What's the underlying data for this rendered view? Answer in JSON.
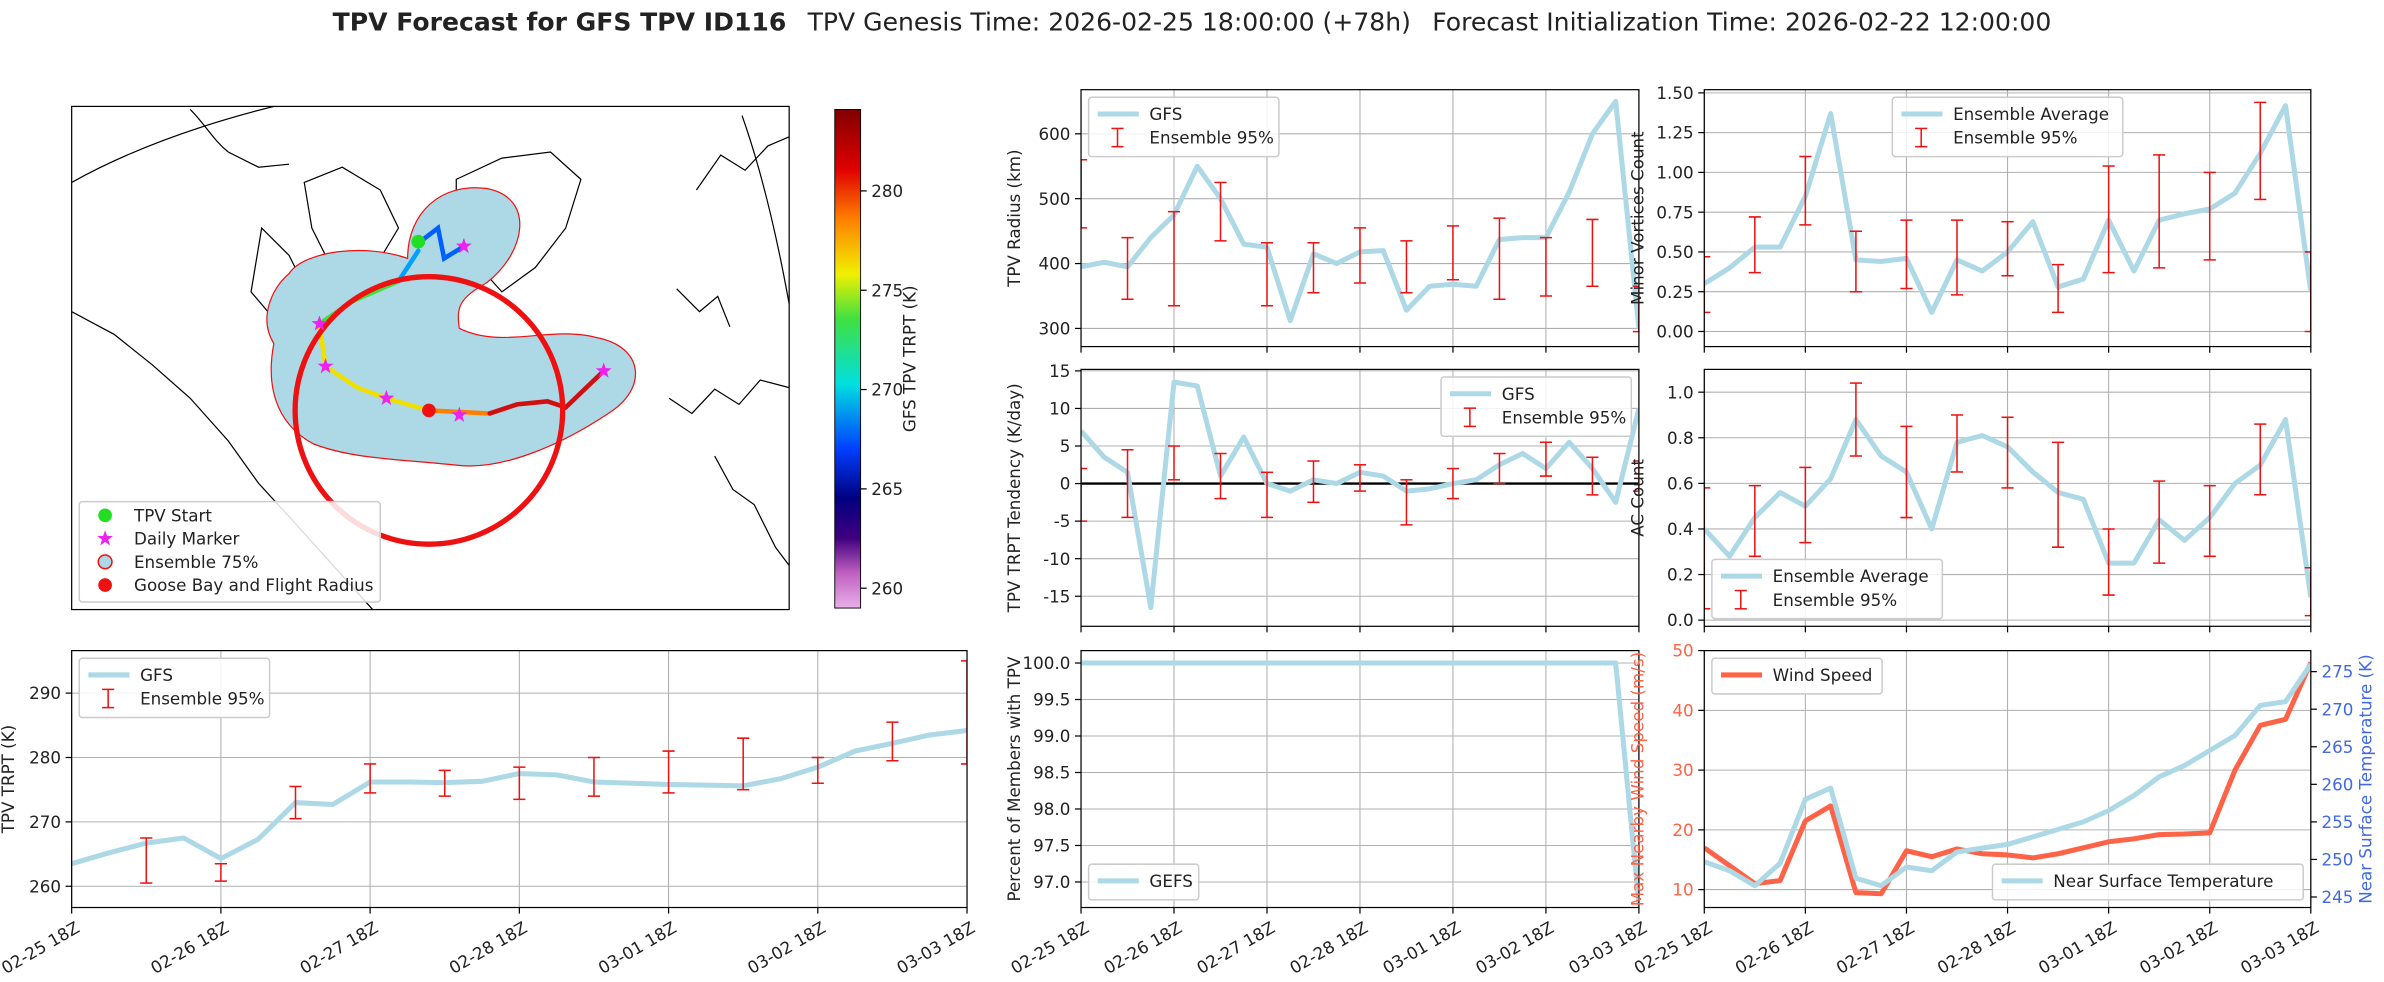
{
  "figure": {
    "title": "TPV Forecast for GFS TPV ID116",
    "genesis": "TPV Genesis Time: 2026-02-25 18:00:00 (+78h)",
    "init": "Forecast Initialization Time: 2026-02-22 12:00:00"
  },
  "chart_data": [
    {
      "type": "map",
      "legend": [
        {
          "name": "TPV Start",
          "color": "#22dd22"
        },
        {
          "name": "Daily Marker",
          "color": "#ee22ee"
        },
        {
          "name": "Ensemble 75%",
          "color": "#add8e6"
        },
        {
          "name": "Goose Bay and Flight Radius",
          "color": "#ee1111"
        }
      ],
      "colorbar": {
        "label": "GFS TPV TRPT (K)",
        "lim": [
          259,
          284.1
        ],
        "ticks": [
          260,
          265,
          270,
          275,
          280
        ]
      }
    },
    {
      "type": "line",
      "ylabel": "TPV Radius (km)",
      "grid": true,
      "legend": "upper left",
      "xticklabels": false,
      "x": [
        "02-25 18Z",
        "02-26 00Z",
        "02-26 06Z",
        "02-26 12Z",
        "02-26 18Z",
        "02-27 00Z",
        "02-27 06Z",
        "02-27 12Z",
        "02-27 18Z",
        "02-28 00Z",
        "02-28 06Z",
        "02-28 12Z",
        "02-28 18Z",
        "03-01 00Z",
        "03-01 06Z",
        "03-01 12Z",
        "03-01 18Z",
        "03-02 00Z",
        "03-02 06Z",
        "03-02 12Z",
        "03-02 18Z",
        "03-03 00Z",
        "03-03 06Z",
        "03-03 12Z",
        "03-03 18Z"
      ],
      "xlim": [
        "02-25 18Z",
        "03-03 18Z"
      ],
      "xticks": [
        "02-25 18Z",
        "02-26 18Z",
        "02-27 18Z",
        "02-28 18Z",
        "03-01 18Z",
        "03-02 18Z",
        "03-03 18Z"
      ],
      "ylim": [
        272,
        668
      ],
      "yticks": [
        300,
        400,
        500,
        600
      ],
      "series": [
        {
          "name": "GFS",
          "color": "#add8e6",
          "values": [
            395,
            402,
            395,
            440,
            475,
            550,
            500,
            430,
            425,
            312,
            415,
            400,
            418,
            420,
            328,
            365,
            368,
            365,
            437,
            440,
            440,
            510,
            600,
            650,
            300
          ]
        },
        {
          "name": "Ensemble 95%",
          "color": "#ee1111",
          "type": "errorbar",
          "x": [
            "02-25 18Z",
            "02-26 06Z",
            "02-26 18Z",
            "02-27 06Z",
            "02-27 18Z",
            "02-28 06Z",
            "02-28 18Z",
            "03-01 06Z",
            "03-01 18Z",
            "03-02 06Z",
            "03-02 18Z",
            "03-03 06Z",
            "03-03 18Z"
          ],
          "low": [
            455,
            345,
            335,
            435,
            335,
            355,
            370,
            355,
            375,
            345,
            350,
            365,
            295
          ],
          "high": [
            560,
            440,
            480,
            525,
            432,
            432,
            455,
            435,
            458,
            470,
            440,
            468,
            365
          ]
        }
      ]
    },
    {
      "type": "line",
      "ylabel": "Minor Vortices Count",
      "grid": true,
      "legend": "upper center",
      "xticklabels": false,
      "x": [
        "02-25 18Z",
        "02-26 00Z",
        "02-26 06Z",
        "02-26 12Z",
        "02-26 18Z",
        "02-27 00Z",
        "02-27 06Z",
        "02-27 12Z",
        "02-27 18Z",
        "02-28 00Z",
        "02-28 06Z",
        "02-28 12Z",
        "02-28 18Z",
        "03-01 00Z",
        "03-01 06Z",
        "03-01 12Z",
        "03-01 18Z",
        "03-02 00Z",
        "03-02 06Z",
        "03-02 12Z",
        "03-02 18Z",
        "03-03 00Z",
        "03-03 06Z",
        "03-03 12Z",
        "03-03 18Z"
      ],
      "xlim": [
        "02-25 18Z",
        "03-03 18Z"
      ],
      "xticks": [
        "02-25 18Z",
        "02-26 18Z",
        "02-27 18Z",
        "02-28 18Z",
        "03-01 18Z",
        "03-02 18Z",
        "03-03 18Z"
      ],
      "ylim": [
        -0.095,
        1.52
      ],
      "yticks": [
        {
          "value": 0,
          "label": "0.00"
        },
        0.25,
        {
          "value": 0.5,
          "label": "0.50"
        },
        0.75,
        {
          "value": 1,
          "label": "1.00"
        },
        1.25,
        {
          "value": 1.5,
          "label": "1.50"
        }
      ],
      "series": [
        {
          "name": "Ensemble Average",
          "color": "#add8e6",
          "values": [
            0.3,
            0.4,
            0.53,
            0.53,
            0.85,
            1.37,
            0.45,
            0.44,
            0.46,
            0.12,
            0.45,
            0.38,
            0.5,
            0.69,
            0.28,
            0.33,
            0.7,
            0.38,
            0.7,
            0.74,
            0.77,
            0.87,
            1.12,
            1.42,
            0.25
          ]
        },
        {
          "name": "Ensemble 95%",
          "color": "#ee1111",
          "type": "errorbar",
          "x": [
            "02-25 18Z",
            "02-26 06Z",
            "02-26 18Z",
            "02-27 06Z",
            "02-27 18Z",
            "02-28 06Z",
            "02-28 18Z",
            "03-01 06Z",
            "03-01 18Z",
            "03-02 06Z",
            "03-02 18Z",
            "03-03 06Z",
            "03-03 18Z"
          ],
          "low": [
            0.12,
            0.37,
            0.67,
            0.25,
            0.27,
            0.23,
            0.35,
            0.12,
            0.37,
            0.4,
            0.45,
            0.83,
            0.0
          ],
          "high": [
            0.47,
            0.72,
            1.1,
            0.63,
            0.7,
            0.7,
            0.69,
            0.42,
            1.04,
            1.11,
            1.0,
            1.44,
            0.5
          ]
        }
      ]
    },
    {
      "type": "line",
      "ylabel": "TPV TRPT Tendency (K/day)",
      "grid": true,
      "legend": "upper right",
      "xticklabels": false,
      "hline": 0,
      "x": [
        "02-25 18Z",
        "02-26 00Z",
        "02-26 06Z",
        "02-26 12Z",
        "02-26 18Z",
        "02-27 00Z",
        "02-27 06Z",
        "02-27 12Z",
        "02-27 18Z",
        "02-28 00Z",
        "02-28 06Z",
        "02-28 12Z",
        "02-28 18Z",
        "03-01 00Z",
        "03-01 06Z",
        "03-01 12Z",
        "03-01 18Z",
        "03-02 00Z",
        "03-02 06Z",
        "03-02 12Z",
        "03-02 18Z",
        "03-03 00Z",
        "03-03 06Z",
        "03-03 12Z",
        "03-03 18Z"
      ],
      "xlim": [
        "02-25 18Z",
        "03-03 18Z"
      ],
      "xticks": [
        "02-25 18Z",
        "02-26 18Z",
        "02-27 18Z",
        "02-28 18Z",
        "03-01 18Z",
        "03-02 18Z",
        "03-03 18Z"
      ],
      "ylim": [
        -19,
        15.2
      ],
      "yticks": [
        -15,
        -10,
        -5,
        0,
        5,
        10,
        15
      ],
      "series": [
        {
          "name": "GFS",
          "color": "#add8e6",
          "values": [
            7,
            3.5,
            1.5,
            -16.5,
            13.5,
            13,
            1,
            6.2,
            0,
            -1,
            0.5,
            0,
            1.5,
            1,
            -1,
            -0.7,
            0,
            0.5,
            2.5,
            4,
            2,
            5.5,
            2,
            -2.5,
            10
          ]
        },
        {
          "name": "Ensemble 95%",
          "color": "#ee1111",
          "type": "errorbar",
          "x": [
            "02-25 18Z",
            "02-26 06Z",
            "02-26 18Z",
            "02-27 06Z",
            "02-27 18Z",
            "02-28 06Z",
            "02-28 18Z",
            "03-01 06Z",
            "03-01 18Z",
            "03-02 06Z",
            "03-02 18Z",
            "03-03 06Z",
            "03-03 18Z"
          ],
          "low": [
            -5,
            -4.5,
            0.5,
            -2,
            -4.5,
            -2.5,
            -1,
            -5.5,
            -2,
            0,
            1,
            -1.5,
            -1
          ],
          "high": [
            2,
            4.5,
            5,
            4,
            1.5,
            3,
            2.5,
            0.5,
            2,
            4,
            5.5,
            3.5,
            3
          ]
        }
      ]
    },
    {
      "type": "line",
      "ylabel": "AC Count",
      "grid": true,
      "legend": "lower left",
      "xticklabels": false,
      "x": [
        "02-25 18Z",
        "02-26 00Z",
        "02-26 06Z",
        "02-26 12Z",
        "02-26 18Z",
        "02-27 00Z",
        "02-27 06Z",
        "02-27 12Z",
        "02-27 18Z",
        "02-28 00Z",
        "02-28 06Z",
        "02-28 12Z",
        "02-28 18Z",
        "03-01 00Z",
        "03-01 06Z",
        "03-01 12Z",
        "03-01 18Z",
        "03-02 00Z",
        "03-02 06Z",
        "03-02 12Z",
        "03-02 18Z",
        "03-03 00Z",
        "03-03 06Z",
        "03-03 12Z",
        "03-03 18Z"
      ],
      "xlim": [
        "02-25 18Z",
        "03-03 18Z"
      ],
      "xticks": [
        "02-25 18Z",
        "02-26 18Z",
        "02-27 18Z",
        "02-28 18Z",
        "03-01 18Z",
        "03-02 18Z",
        "03-03 18Z"
      ],
      "ylim": [
        -0.027,
        1.1
      ],
      "yticks": [
        {
          "value": 0,
          "label": "0.0"
        },
        0.2,
        0.4,
        0.6,
        0.8,
        {
          "value": 1,
          "label": "1.0"
        }
      ],
      "series": [
        {
          "name": "Ensemble Average",
          "color": "#add8e6",
          "values": [
            0.4,
            0.28,
            0.45,
            0.56,
            0.5,
            0.62,
            0.88,
            0.72,
            0.65,
            0.4,
            0.78,
            0.81,
            0.76,
            0.65,
            0.56,
            0.53,
            0.25,
            0.25,
            0.44,
            0.35,
            0.45,
            0.6,
            0.68,
            0.88,
            0.1
          ]
        },
        {
          "name": "Ensemble 95%",
          "color": "#ee1111",
          "type": "errorbar",
          "x": [
            "02-25 18Z",
            "02-26 06Z",
            "02-26 18Z",
            "02-27 06Z",
            "02-27 18Z",
            "02-28 06Z",
            "02-28 18Z",
            "03-01 06Z",
            "03-01 18Z",
            "03-02 06Z",
            "03-02 18Z",
            "03-03 06Z",
            "03-03 18Z"
          ],
          "low": [
            0.05,
            0.28,
            0.34,
            0.72,
            0.45,
            0.65,
            0.58,
            0.32,
            0.11,
            0.25,
            0.28,
            0.55,
            0.02
          ],
          "high": [
            0.58,
            0.59,
            0.67,
            1.04,
            0.85,
            0.9,
            0.89,
            0.78,
            0.4,
            0.61,
            0.59,
            0.86,
            0.23
          ]
        }
      ]
    },
    {
      "type": "line",
      "ylabel": "TPV TRPT (K)",
      "grid": true,
      "legend": "upper left",
      "xticklabels": true,
      "x": [
        "02-25 18Z",
        "02-26 00Z",
        "02-26 06Z",
        "02-26 12Z",
        "02-26 18Z",
        "02-27 00Z",
        "02-27 06Z",
        "02-27 12Z",
        "02-27 18Z",
        "02-28 00Z",
        "02-28 06Z",
        "02-28 12Z",
        "02-28 18Z",
        "03-01 00Z",
        "03-01 06Z",
        "03-01 12Z",
        "03-01 18Z",
        "03-02 00Z",
        "03-02 06Z",
        "03-02 12Z",
        "03-02 18Z",
        "03-03 00Z",
        "03-03 06Z",
        "03-03 12Z",
        "03-03 18Z"
      ],
      "xlim": [
        "02-25 18Z",
        "03-03 18Z"
      ],
      "xticks": [
        "02-25 18Z",
        "02-26 18Z",
        "02-27 18Z",
        "02-28 18Z",
        "03-01 18Z",
        "03-02 18Z",
        "03-03 18Z"
      ],
      "ylim": [
        256.7,
        296.6
      ],
      "yticks": [
        260,
        270,
        280,
        290
      ],
      "series": [
        {
          "name": "GFS",
          "color": "#add8e6",
          "values": [
            263.5,
            265.2,
            266.7,
            267.5,
            264.3,
            267.3,
            273,
            272.7,
            276.2,
            276.2,
            276.1,
            276.3,
            277.5,
            277.3,
            276.2,
            276,
            275.8,
            275.7,
            275.6,
            276.7,
            278.5,
            281,
            282.2,
            283.5,
            284.2
          ]
        },
        {
          "name": "Ensemble 95%",
          "color": "#ee1111",
          "type": "errorbar",
          "x": [
            "02-26 06Z",
            "02-26 18Z",
            "02-27 06Z",
            "02-27 18Z",
            "02-28 06Z",
            "02-28 18Z",
            "03-01 06Z",
            "03-01 18Z",
            "03-02 06Z",
            "03-02 18Z",
            "03-03 06Z",
            "03-03 18Z"
          ],
          "low": [
            260.5,
            260.8,
            270.5,
            274.5,
            274,
            273.5,
            274,
            274.5,
            275,
            276,
            279.5,
            279
          ],
          "high": [
            267.5,
            263.5,
            275.5,
            279,
            278,
            278.5,
            280,
            281,
            283,
            280,
            285.5,
            295
          ]
        }
      ]
    },
    {
      "type": "line",
      "ylabel": "Percent of Members with TPV",
      "grid": true,
      "legend": "lower left",
      "xticklabels": true,
      "x": [
        "02-25 18Z",
        "02-26 00Z",
        "02-26 06Z",
        "02-26 12Z",
        "02-26 18Z",
        "02-27 00Z",
        "02-27 06Z",
        "02-27 12Z",
        "02-27 18Z",
        "02-28 00Z",
        "02-28 06Z",
        "02-28 12Z",
        "02-28 18Z",
        "03-01 00Z",
        "03-01 06Z",
        "03-01 12Z",
        "03-01 18Z",
        "03-02 00Z",
        "03-02 06Z",
        "03-02 12Z",
        "03-02 18Z",
        "03-03 00Z",
        "03-03 06Z",
        "03-03 12Z",
        "03-03 18Z"
      ],
      "xlim": [
        "02-25 18Z",
        "03-03 18Z"
      ],
      "xticks": [
        "02-25 18Z",
        "02-26 18Z",
        "02-27 18Z",
        "02-28 18Z",
        "03-01 18Z",
        "03-02 18Z",
        "03-03 18Z"
      ],
      "ylim": [
        96.65,
        100.17
      ],
      "yticks": [
        {
          "value": 97,
          "label": "97.0"
        },
        97.5,
        {
          "value": 98,
          "label": "98.0"
        },
        98.5,
        {
          "value": 99,
          "label": "99.0"
        },
        99.5,
        {
          "value": 100,
          "label": "100.0"
        }
      ],
      "series": [
        {
          "name": "GEFS",
          "color": "#add8e6",
          "values": [
            100,
            100,
            100,
            100,
            100,
            100,
            100,
            100,
            100,
            100,
            100,
            100,
            100,
            100,
            100,
            100,
            100,
            100,
            100,
            100,
            100,
            100,
            100,
            100,
            96.7
          ]
        }
      ]
    },
    {
      "type": "line",
      "ylabel": "Max Nearby Wind Speed (m/s)",
      "ylabel_color": "#ff6347",
      "y2label": "Near Surface Temperature (K)",
      "y2label_color": "#4169e1",
      "grid": true,
      "legend": "upper left",
      "legend2": "lower right",
      "xticklabels": true,
      "x": [
        "02-25 18Z",
        "02-26 00Z",
        "02-26 06Z",
        "02-26 12Z",
        "02-26 18Z",
        "02-27 00Z",
        "02-27 06Z",
        "02-27 12Z",
        "02-27 18Z",
        "02-28 00Z",
        "02-28 06Z",
        "02-28 12Z",
        "02-28 18Z",
        "03-01 00Z",
        "03-01 06Z",
        "03-01 12Z",
        "03-01 18Z",
        "03-02 00Z",
        "03-02 06Z",
        "03-02 12Z",
        "03-02 18Z",
        "03-03 00Z",
        "03-03 06Z",
        "03-03 12Z",
        "03-03 18Z"
      ],
      "xlim": [
        "02-25 18Z",
        "03-03 18Z"
      ],
      "xticks": [
        "02-25 18Z",
        "02-26 18Z",
        "02-27 18Z",
        "02-28 18Z",
        "03-01 18Z",
        "03-02 18Z",
        "03-03 18Z"
      ],
      "ylim": [
        7,
        50
      ],
      "yticks": [
        10,
        20,
        30,
        40,
        50
      ],
      "y2lim": [
        243.6,
        277.8
      ],
      "y2ticks": [
        245,
        250,
        255,
        260,
        265,
        270,
        275
      ],
      "series": [
        {
          "name": "Wind Speed",
          "color": "#ff6347",
          "values": [
            17,
            14,
            11,
            11.5,
            21.5,
            24,
            9.5,
            9.3,
            16.5,
            15.5,
            16.8,
            16,
            15.8,
            15.3,
            16,
            17,
            18,
            18.5,
            19.2,
            19.3,
            19.5,
            30,
            37.5,
            38.5,
            48
          ]
        },
        {
          "name": "Near Surface Temperature",
          "color": "#add8e6",
          "axis": "y2",
          "values": [
            249.7,
            248.5,
            246.5,
            249.5,
            258,
            259.5,
            247.5,
            246.5,
            249,
            248.5,
            251,
            251.5,
            252,
            253,
            254,
            255,
            256.5,
            258.5,
            261,
            262.5,
            264.5,
            266.5,
            270.5,
            271,
            276
          ]
        }
      ]
    }
  ]
}
